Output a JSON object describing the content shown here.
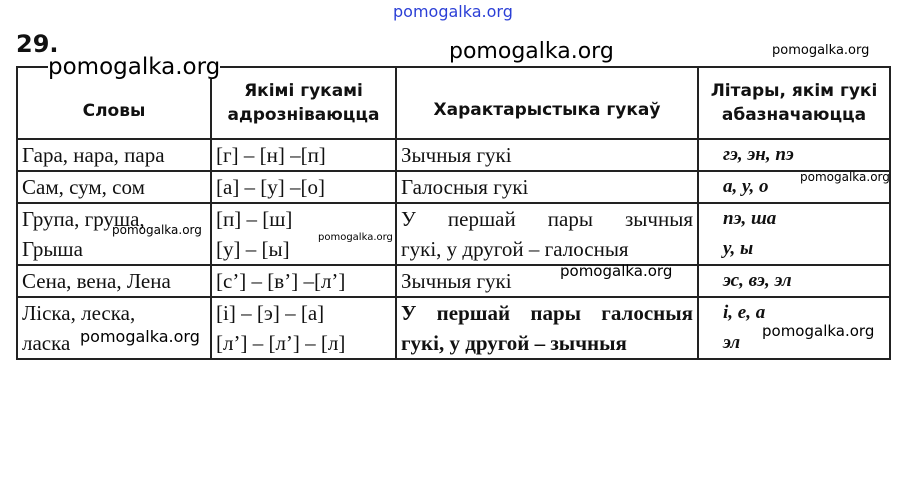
{
  "exercise_number": "29.",
  "table": {
    "headers": [
      "Словы",
      "Якімі гукамі адрознiваюцца",
      "Характарыстыка гукаў",
      "Літары, якім гукі абазначаюцца"
    ],
    "rows": [
      {
        "words": [
          "Гара, нара, пара"
        ],
        "sounds": [
          "[г] – [н] –[п]"
        ],
        "char": [
          "Зычныя гукі"
        ],
        "letters": [
          "гэ, эн, пэ"
        ]
      },
      {
        "words": [
          "Сам, сум, сом"
        ],
        "sounds": [
          "[а] – [у] –[о]"
        ],
        "char": [
          "Галосныя гукі"
        ],
        "letters": [
          "а, у, о"
        ]
      },
      {
        "words": [
          "Група, груша,",
          "Грыша"
        ],
        "sounds": [
          "[п] – [ш]",
          "[у] – [ы]"
        ],
        "char": [
          "У першай пары зычныя",
          "гукі, у другой – галосныя"
        ],
        "letters": [
          "пэ, ша",
          "у, ы"
        ]
      },
      {
        "words": [
          "Сена, вена, Лена"
        ],
        "sounds": [
          "[с’] – [в’] –[л’]"
        ],
        "char": [
          "Зычныя гукі"
        ],
        "letters": [
          "эс, вэ, эл"
        ]
      },
      {
        "words": [
          "Ліска, леска,",
          "ласка"
        ],
        "sounds": [
          "[і] – [э] – [а]",
          "[л’] – [л’] – [л]"
        ],
        "char": [
          "У першай пары галосныя",
          "гукі, у другой – зычныя"
        ],
        "letters": [
          "і, е, а",
          "эл"
        ]
      }
    ]
  },
  "watermark": "pomogalka.org",
  "colors": {
    "top_watermark": "#2b3fd6"
  }
}
